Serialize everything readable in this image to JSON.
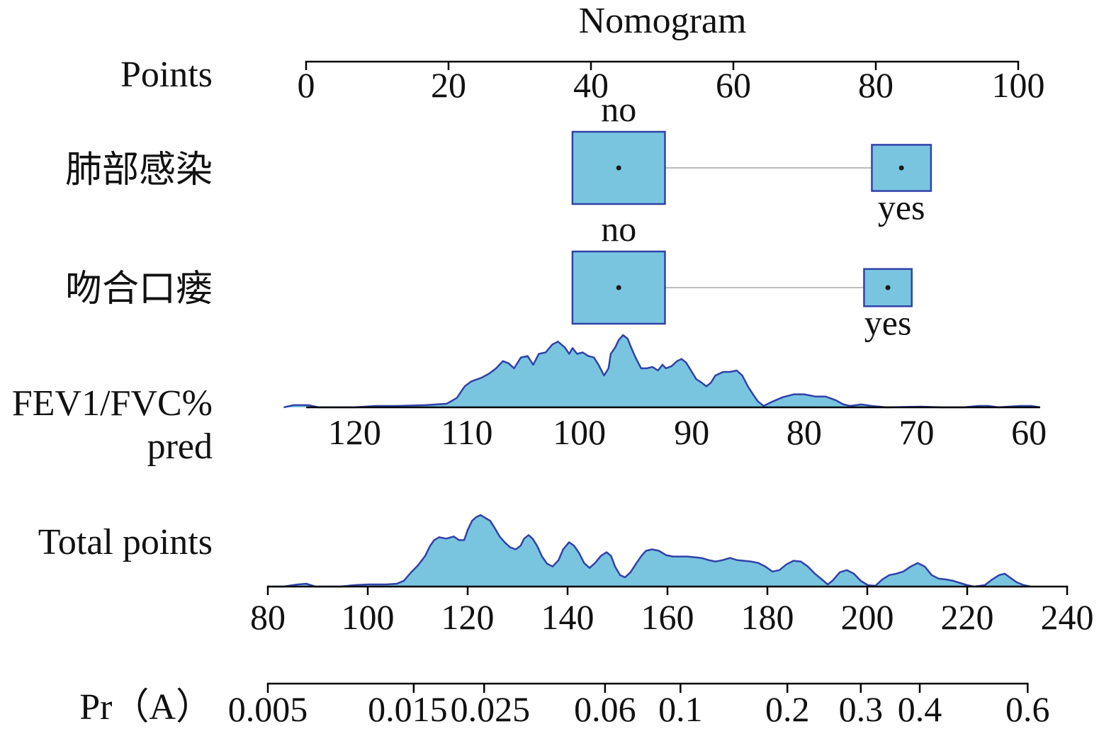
{
  "chart_data": {
    "type": "nomogram",
    "title": "Nomogram",
    "colors": {
      "fill": "#79c5e0",
      "outline": "#3142a8",
      "connector": "#bcbcbc",
      "axis": "#000000",
      "dot": "#1a1a1a"
    },
    "points": {
      "label": "Points",
      "range": [
        0,
        100
      ],
      "ticks": [
        0,
        20,
        40,
        60,
        80,
        100
      ]
    },
    "categorical": [
      {
        "label": "肺部感染",
        "levels": [
          {
            "name": "no",
            "points": 43.9,
            "frequency": 0.71,
            "label_side": "above"
          },
          {
            "name": "yes",
            "points": 83.6,
            "frequency": 0.29,
            "label_side": "below"
          }
        ]
      },
      {
        "label": "吻合口瘘",
        "levels": [
          {
            "name": "no",
            "points": 43.9,
            "frequency": 0.79,
            "label_side": "above"
          },
          {
            "name": "yes",
            "points": 81.7,
            "frequency": 0.21,
            "label_side": "below"
          }
        ]
      }
    ],
    "continuous": {
      "label_lines": [
        "FEV1/FVC%",
        "pred"
      ],
      "range": [
        124.3,
        59.0
      ],
      "ticks": [
        120,
        110,
        100,
        90,
        80,
        70,
        60
      ],
      "points_map": [
        {
          "value": 120,
          "points": 6.8
        },
        {
          "value": 60,
          "points": 101.5
        }
      ],
      "density": [
        [
          126.3,
          0.0
        ],
        [
          125.4,
          0.03
        ],
        [
          124.1,
          0.03
        ],
        [
          123.2,
          0.0
        ],
        [
          120.0,
          0.0
        ],
        [
          118.1,
          0.02
        ],
        [
          116.2,
          0.02
        ],
        [
          113.7,
          0.03
        ],
        [
          111.8,
          0.05
        ],
        [
          110.9,
          0.13
        ],
        [
          110.2,
          0.29
        ],
        [
          109.6,
          0.36
        ],
        [
          108.7,
          0.41
        ],
        [
          108.0,
          0.47
        ],
        [
          107.4,
          0.54
        ],
        [
          106.8,
          0.64
        ],
        [
          106.3,
          0.61
        ],
        [
          105.8,
          0.54
        ],
        [
          105.2,
          0.69
        ],
        [
          104.6,
          0.71
        ],
        [
          104.1,
          0.59
        ],
        [
          103.6,
          0.74
        ],
        [
          103.0,
          0.76
        ],
        [
          102.4,
          0.87
        ],
        [
          101.9,
          0.91
        ],
        [
          101.3,
          0.83
        ],
        [
          100.9,
          0.74
        ],
        [
          100.6,
          0.82
        ],
        [
          100.2,
          0.74
        ],
        [
          99.7,
          0.76
        ],
        [
          99.2,
          0.71
        ],
        [
          98.7,
          0.69
        ],
        [
          98.3,
          0.59
        ],
        [
          97.8,
          0.44
        ],
        [
          97.4,
          0.54
        ],
        [
          97.2,
          0.74
        ],
        [
          96.8,
          0.83
        ],
        [
          96.5,
          0.93
        ],
        [
          96.1,
          1.0
        ],
        [
          95.7,
          0.95
        ],
        [
          95.4,
          0.83
        ],
        [
          95.0,
          0.69
        ],
        [
          94.5,
          0.54
        ],
        [
          94.0,
          0.54
        ],
        [
          93.5,
          0.56
        ],
        [
          93.0,
          0.51
        ],
        [
          92.6,
          0.59
        ],
        [
          92.3,
          0.54
        ],
        [
          91.8,
          0.57
        ],
        [
          91.3,
          0.64
        ],
        [
          90.9,
          0.67
        ],
        [
          90.5,
          0.62
        ],
        [
          90.1,
          0.52
        ],
        [
          89.6,
          0.39
        ],
        [
          89.1,
          0.34
        ],
        [
          88.7,
          0.29
        ],
        [
          88.3,
          0.34
        ],
        [
          87.9,
          0.44
        ],
        [
          87.2,
          0.49
        ],
        [
          86.6,
          0.49
        ],
        [
          86.0,
          0.51
        ],
        [
          85.5,
          0.44
        ],
        [
          85.0,
          0.29
        ],
        [
          84.5,
          0.17
        ],
        [
          84.1,
          0.08
        ],
        [
          83.6,
          0.02
        ],
        [
          82.8,
          0.08
        ],
        [
          81.9,
          0.14
        ],
        [
          80.9,
          0.18
        ],
        [
          80.0,
          0.18
        ],
        [
          79.0,
          0.15
        ],
        [
          78.1,
          0.15
        ],
        [
          77.2,
          0.1
        ],
        [
          76.5,
          0.04
        ],
        [
          75.9,
          0.02
        ],
        [
          74.9,
          0.04
        ],
        [
          74.0,
          0.02
        ],
        [
          72.7,
          0.0
        ],
        [
          69.6,
          0.01
        ],
        [
          67.7,
          0.0
        ],
        [
          65.8,
          0.0
        ],
        [
          64.5,
          0.02
        ],
        [
          63.6,
          0.02
        ],
        [
          62.7,
          0.0
        ],
        [
          60.8,
          0.02
        ],
        [
          59.8,
          0.02
        ],
        [
          59.0,
          0.0
        ]
      ]
    },
    "total_points": {
      "label": "Total points",
      "range": [
        80,
        240
      ],
      "ticks": [
        80,
        100,
        120,
        140,
        160,
        180,
        200,
        220,
        240
      ],
      "density": [
        [
          80.0,
          0.0
        ],
        [
          83.1,
          0.0
        ],
        [
          86.0,
          0.03
        ],
        [
          87.7,
          0.04
        ],
        [
          89.5,
          0.0
        ],
        [
          94.5,
          0.0
        ],
        [
          97.3,
          0.02
        ],
        [
          100.1,
          0.03
        ],
        [
          103.7,
          0.03
        ],
        [
          105.8,
          0.04
        ],
        [
          107.2,
          0.08
        ],
        [
          108.7,
          0.2
        ],
        [
          110.1,
          0.3
        ],
        [
          111.5,
          0.43
        ],
        [
          112.5,
          0.57
        ],
        [
          113.3,
          0.65
        ],
        [
          114.3,
          0.69
        ],
        [
          115.7,
          0.67
        ],
        [
          117.2,
          0.7
        ],
        [
          118.3,
          0.65
        ],
        [
          119.3,
          0.65
        ],
        [
          120.0,
          0.79
        ],
        [
          120.9,
          0.92
        ],
        [
          121.7,
          0.97
        ],
        [
          122.6,
          1.0
        ],
        [
          123.5,
          0.96
        ],
        [
          124.5,
          0.92
        ],
        [
          125.4,
          0.82
        ],
        [
          126.4,
          0.7
        ],
        [
          127.4,
          0.62
        ],
        [
          128.5,
          0.55
        ],
        [
          129.6,
          0.52
        ],
        [
          130.6,
          0.57
        ],
        [
          131.3,
          0.67
        ],
        [
          132.2,
          0.72
        ],
        [
          133.0,
          0.67
        ],
        [
          133.9,
          0.57
        ],
        [
          134.9,
          0.42
        ],
        [
          135.9,
          0.32
        ],
        [
          137.0,
          0.28
        ],
        [
          138.2,
          0.37
        ],
        [
          139.1,
          0.52
        ],
        [
          140.3,
          0.62
        ],
        [
          141.3,
          0.57
        ],
        [
          142.3,
          0.47
        ],
        [
          143.3,
          0.33
        ],
        [
          144.4,
          0.26
        ],
        [
          145.5,
          0.33
        ],
        [
          146.7,
          0.43
        ],
        [
          147.8,
          0.48
        ],
        [
          148.7,
          0.43
        ],
        [
          149.5,
          0.28
        ],
        [
          150.5,
          0.16
        ],
        [
          151.5,
          0.13
        ],
        [
          152.6,
          0.2
        ],
        [
          153.8,
          0.33
        ],
        [
          154.8,
          0.43
        ],
        [
          155.7,
          0.5
        ],
        [
          156.9,
          0.52
        ],
        [
          158.3,
          0.5
        ],
        [
          159.7,
          0.44
        ],
        [
          161.1,
          0.42
        ],
        [
          162.6,
          0.42
        ],
        [
          164.0,
          0.42
        ],
        [
          165.4,
          0.41
        ],
        [
          166.8,
          0.4
        ],
        [
          168.2,
          0.37
        ],
        [
          169.6,
          0.35
        ],
        [
          171.1,
          0.37
        ],
        [
          172.5,
          0.4
        ],
        [
          173.9,
          0.37
        ],
        [
          175.3,
          0.36
        ],
        [
          176.7,
          0.35
        ],
        [
          178.2,
          0.33
        ],
        [
          179.6,
          0.28
        ],
        [
          181.0,
          0.21
        ],
        [
          182.4,
          0.23
        ],
        [
          183.8,
          0.31
        ],
        [
          185.2,
          0.36
        ],
        [
          186.7,
          0.35
        ],
        [
          188.1,
          0.28
        ],
        [
          189.5,
          0.18
        ],
        [
          190.9,
          0.1
        ],
        [
          192.1,
          0.03
        ],
        [
          193.0,
          0.08
        ],
        [
          194.5,
          0.2
        ],
        [
          195.9,
          0.23
        ],
        [
          197.3,
          0.18
        ],
        [
          198.7,
          0.08
        ],
        [
          200.1,
          0.02
        ],
        [
          201.6,
          0.01
        ],
        [
          203.0,
          0.1
        ],
        [
          204.4,
          0.16
        ],
        [
          205.8,
          0.18
        ],
        [
          207.2,
          0.21
        ],
        [
          208.7,
          0.28
        ],
        [
          210.1,
          0.33
        ],
        [
          211.5,
          0.28
        ],
        [
          212.9,
          0.16
        ],
        [
          214.3,
          0.11
        ],
        [
          215.7,
          0.1
        ],
        [
          217.2,
          0.08
        ],
        [
          218.6,
          0.05
        ],
        [
          220.0,
          0.02
        ],
        [
          221.4,
          0.0
        ],
        [
          223.5,
          0.02
        ],
        [
          225.0,
          0.1
        ],
        [
          226.4,
          0.16
        ],
        [
          227.5,
          0.18
        ],
        [
          228.5,
          0.13
        ],
        [
          229.9,
          0.06
        ],
        [
          231.3,
          0.02
        ],
        [
          232.8,
          0.0
        ]
      ]
    },
    "probability": {
      "label": "Pr（A）",
      "ticks": [
        {
          "p": 0.005,
          "total_points": 80.0
        },
        {
          "p": 0.015,
          "total_points": 109.2
        },
        {
          "p": 0.025,
          "total_points": 123.3
        },
        {
          "p": 0.06,
          "total_points": 147.5
        },
        {
          "p": 0.1,
          "total_points": 162.6
        },
        {
          "p": 0.2,
          "total_points": 184.0
        },
        {
          "p": 0.3,
          "total_points": 198.7
        },
        {
          "p": 0.4,
          "total_points": 210.5
        },
        {
          "p": 0.6,
          "total_points": 232.1
        }
      ]
    }
  }
}
